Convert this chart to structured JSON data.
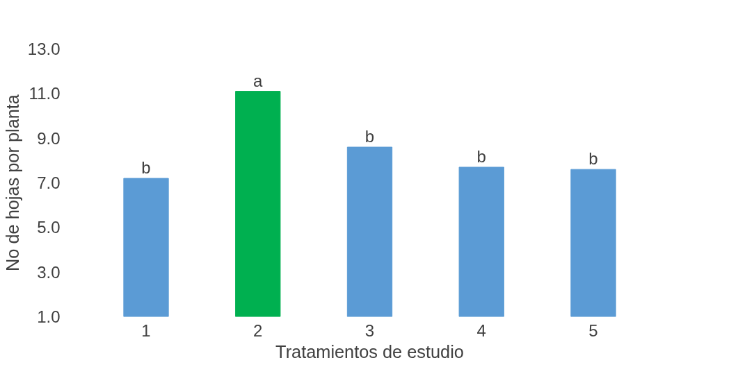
{
  "chart_data": {
    "type": "bar",
    "xlabel": "Tratamientos de estudio",
    "ylabel": "No de hojas por planta",
    "categories": [
      "1",
      "2",
      "3",
      "4",
      "5"
    ],
    "values": [
      7.2,
      11.1,
      8.6,
      7.7,
      7.6
    ],
    "colors": [
      "#5b9bd5",
      "#00b050",
      "#5b9bd5",
      "#5b9bd5",
      "#5b9bd5"
    ],
    "ylim": [
      1.0,
      13.0
    ],
    "yticks": [
      {
        "value": 1,
        "label": "1.0"
      },
      {
        "value": 3,
        "label": "3.0"
      },
      {
        "value": 5,
        "label": "5.0"
      },
      {
        "value": 7,
        "label": "7.0"
      },
      {
        "value": 9,
        "label": "9.0"
      },
      {
        "value": 11,
        "label": "11.0"
      },
      {
        "value": 13,
        "label": "13.0"
      }
    ],
    "grid": false,
    "annotations": [
      {
        "text": "b",
        "x": "1",
        "y": 7.2
      },
      {
        "text": "a",
        "x": "2",
        "y": 11.1
      },
      {
        "text": "b",
        "x": "3",
        "y": 8.6
      },
      {
        "text": "b",
        "x": "4",
        "y": 7.7
      },
      {
        "text": "b",
        "x": "5",
        "y": 7.6
      }
    ]
  }
}
